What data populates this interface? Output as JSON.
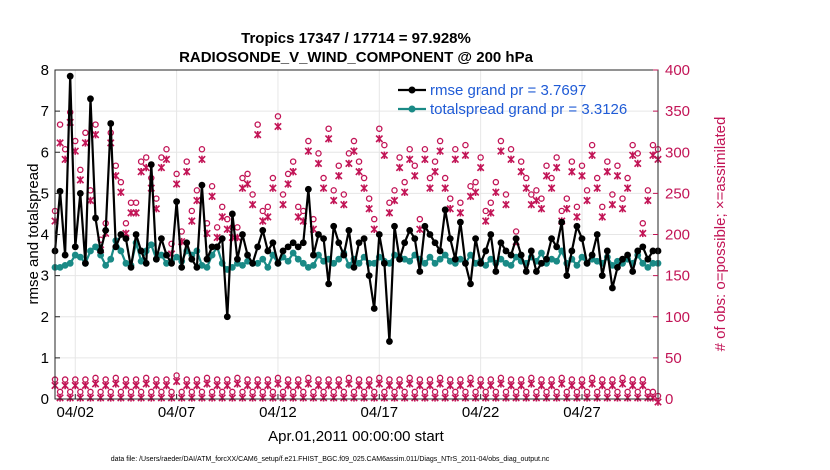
{
  "chart_data": {
    "type": "line",
    "title": "Tropics 17347 / 17714 = 97.928%",
    "subtitle": "RADIOSONDE_V_WIND_COMPONENT @ 200 hPa",
    "xlabel": "Apr.01,2011 00:00:00 start",
    "ylabel_left": "rmse and totalspread",
    "ylabel_right": "# of obs: o=possible; ×=assimilated",
    "footer": "data file: /Users/raeder/DAI/ATM_forcXX/CAM6_setup/f.e21.FHIST_BGC.f09_025.CAM6assim.011/Diags_NTrS_2011-04/obs_diag_output.nc",
    "xlim": [
      0,
      29.75
    ],
    "ylim_left": [
      0,
      8
    ],
    "ylim_right": [
      0,
      400
    ],
    "left_ticks": [
      "0",
      "1",
      "2",
      "3",
      "4",
      "5",
      "6",
      "7",
      "8"
    ],
    "right_ticks": [
      "0",
      "50",
      "100",
      "150",
      "200",
      "250",
      "300",
      "350",
      "400"
    ],
    "x_ticks": [
      {
        "x": 1,
        "label": "04/02"
      },
      {
        "x": 6,
        "label": "04/07"
      },
      {
        "x": 11,
        "label": "04/12"
      },
      {
        "x": 16,
        "label": "04/17"
      },
      {
        "x": 21,
        "label": "04/22"
      },
      {
        "x": 26,
        "label": "04/27"
      }
    ],
    "grid": true,
    "legend_position": "top-right",
    "series": [
      {
        "name": "rmse grand pr = 3.7697",
        "color": "#000000",
        "axis": "left",
        "values": [
          3.6,
          5.05,
          3.5,
          7.85,
          3.7,
          5.0,
          3.3,
          7.3,
          4.4,
          3.6,
          4.1,
          6.7,
          3.7,
          4.0,
          3.9,
          3.2,
          4.0,
          3.6,
          3.3,
          5.7,
          3.4,
          3.9,
          3.5,
          3.3,
          4.8,
          3.2,
          3.8,
          3.4,
          3.2,
          5.2,
          3.4,
          3.7,
          3.7,
          3.9,
          2.0,
          4.5,
          3.4,
          4.0,
          3.5,
          3.3,
          3.7,
          4.1,
          3.6,
          3.8,
          3.3,
          3.6,
          3.7,
          3.8,
          3.7,
          3.8,
          5.1,
          3.5,
          4.0,
          3.9,
          2.8,
          4.2,
          3.8,
          3.5,
          4.1,
          3.2,
          3.8,
          3.9,
          3.0,
          2.2,
          4.0,
          3.3,
          1.4,
          4.2,
          3.4,
          3.8,
          4.1,
          3.9,
          3.1,
          4.2,
          4.0,
          3.8,
          3.6,
          4.6,
          3.9,
          3.4,
          4.3,
          3.3,
          2.8,
          3.9,
          3.3,
          3.6,
          4.0,
          3.1,
          3.8,
          3.6,
          3.5,
          3.9,
          3.5,
          3.1,
          3.6,
          3.1,
          3.3,
          3.4,
          3.9,
          3.7,
          4.3,
          3.0,
          3.6,
          4.2,
          3.9,
          3.3,
          3.5,
          4.0,
          3.0,
          3.6,
          2.7,
          3.2,
          3.4,
          3.5,
          3.1,
          3.6,
          3.7,
          3.4,
          3.6,
          3.6
        ]
      },
      {
        "name": "totalspread grand pr = 3.3126",
        "color": "#1a8a86",
        "axis": "left",
        "values": [
          3.2,
          3.2,
          3.25,
          3.3,
          3.5,
          3.45,
          3.3,
          3.6,
          3.7,
          3.5,
          3.25,
          3.4,
          3.85,
          3.6,
          3.3,
          3.25,
          3.8,
          3.35,
          3.6,
          3.75,
          3.4,
          3.5,
          3.3,
          3.35,
          3.45,
          3.35,
          3.6,
          3.5,
          3.6,
          3.25,
          3.2,
          3.5,
          3.7,
          3.3,
          3.15,
          3.2,
          3.3,
          3.25,
          3.35,
          3.3,
          3.3,
          3.4,
          3.2,
          3.5,
          3.3,
          3.45,
          3.35,
          3.55,
          3.4,
          3.3,
          3.2,
          3.25,
          3.5,
          3.35,
          3.4,
          3.3,
          3.4,
          3.55,
          3.25,
          3.4,
          3.3,
          3.45,
          3.3,
          3.3,
          3.45,
          3.35,
          3.3,
          3.5,
          3.45,
          3.4,
          3.35,
          3.5,
          3.4,
          3.3,
          3.45,
          3.3,
          3.4,
          3.5,
          3.35,
          3.3,
          3.4,
          3.3,
          3.5,
          3.3,
          3.35,
          3.25,
          3.4,
          3.3,
          3.4,
          3.3,
          3.25,
          3.45,
          3.35,
          3.3,
          3.45,
          3.35,
          3.55,
          3.3,
          3.4,
          3.35,
          3.6,
          3.3,
          3.4,
          3.25,
          3.45,
          3.3,
          3.4,
          3.35,
          3.3,
          3.45,
          3.25,
          3.35,
          3.3,
          3.4,
          3.3,
          3.5,
          3.3,
          3.2,
          3.3,
          3.3
        ]
      },
      {
        "name": "# of obs possible (upper)",
        "color": "#c21456",
        "axis": "right",
        "marker": "o",
        "values": [
          225,
          330,
          300,
          345,
          310,
          275,
          320,
          250,
          330,
          190,
          210,
          320,
          280,
          260,
          210,
          235,
          235,
          285,
          290,
          265,
          240,
          290,
          300,
          185,
          270,
          200,
          285,
          225,
          250,
          300,
          210,
          255,
          205,
          230,
          215,
          205,
          205,
          265,
          270,
          245,
          330,
          225,
          230,
          265,
          340,
          245,
          270,
          285,
          230,
          225,
          310,
          215,
          295,
          265,
          325,
          250,
          280,
          245,
          295,
          310,
          285,
          265,
          240,
          215,
          325,
          305,
          235,
          250,
          290,
          260,
          300,
          280,
          215,
          300,
          265,
          285,
          310,
          265,
          240,
          300,
          235,
          305,
          255,
          260,
          290,
          225,
          235,
          260,
          310,
          245,
          300,
          200,
          285,
          265,
          245,
          250,
          240,
          280,
          265,
          290,
          225,
          240,
          285,
          230,
          280,
          250,
          305,
          265,
          230,
          285,
          245,
          280,
          240,
          265,
          305,
          295,
          210,
          250,
          305,
          300
        ]
      },
      {
        "name": "# of obs assimilated (upper)",
        "color": "#c21456",
        "axis": "right",
        "marker": "x",
        "values": [
          220,
          315,
          295,
          340,
          305,
          270,
          315,
          245,
          325,
          185,
          205,
          315,
          275,
          255,
          205,
          230,
          230,
          280,
          285,
          260,
          235,
          285,
          295,
          180,
          265,
          195,
          280,
          220,
          245,
          295,
          205,
          250,
          200,
          225,
          210,
          200,
          200,
          260,
          265,
          240,
          325,
          220,
          225,
          260,
          335,
          240,
          265,
          280,
          225,
          220,
          305,
          210,
          290,
          260,
          320,
          245,
          275,
          240,
          290,
          305,
          280,
          260,
          235,
          210,
          320,
          300,
          230,
          245,
          285,
          255,
          295,
          275,
          210,
          295,
          260,
          280,
          305,
          260,
          235,
          295,
          230,
          300,
          250,
          255,
          285,
          220,
          230,
          255,
          305,
          240,
          295,
          195,
          280,
          260,
          240,
          245,
          235,
          275,
          260,
          285,
          220,
          235,
          280,
          225,
          275,
          245,
          300,
          260,
          225,
          280,
          240,
          275,
          235,
          260,
          300,
          290,
          205,
          245,
          300,
          295
        ]
      },
      {
        "name": "# of obs possible (lower)",
        "color": "#c21456",
        "axis": "right",
        "marker": "o",
        "values": [
          20,
          5,
          20,
          5,
          20,
          5,
          20,
          5,
          22,
          5,
          20,
          5,
          22,
          5,
          20,
          5,
          20,
          5,
          22,
          5,
          20,
          5,
          20,
          5,
          25,
          5,
          20,
          5,
          20,
          5,
          22,
          5,
          20,
          5,
          20,
          5,
          22,
          5,
          20,
          5,
          20,
          5,
          20,
          5,
          22,
          5,
          20,
          5,
          20,
          5,
          22,
          5,
          20,
          5,
          20,
          5,
          20,
          5,
          22,
          5,
          20,
          5,
          20,
          5,
          22,
          5,
          20,
          5,
          20,
          5,
          22,
          5,
          20,
          5,
          20,
          5,
          22,
          5,
          20,
          5,
          20,
          5,
          22,
          5,
          20,
          5,
          20,
          5,
          22,
          5,
          20,
          5,
          20,
          5,
          22,
          5,
          20,
          5,
          20,
          5,
          22,
          5,
          20,
          5,
          20,
          5,
          22,
          5,
          20,
          5,
          20,
          5,
          22,
          5,
          20,
          5,
          20,
          5,
          5,
          0
        ]
      },
      {
        "name": "# of obs assimilated (lower)",
        "color": "#c21456",
        "axis": "right",
        "marker": "x",
        "values": [
          20,
          5,
          20,
          5,
          20,
          5,
          20,
          5,
          22,
          5,
          20,
          5,
          22,
          5,
          20,
          5,
          20,
          5,
          22,
          5,
          20,
          5,
          20,
          5,
          25,
          5,
          20,
          5,
          20,
          5,
          22,
          5,
          20,
          5,
          20,
          5,
          22,
          5,
          20,
          5,
          20,
          5,
          20,
          5,
          22,
          5,
          20,
          5,
          20,
          5,
          22,
          5,
          20,
          5,
          20,
          5,
          20,
          5,
          22,
          5,
          20,
          5,
          20,
          5,
          22,
          5,
          20,
          5,
          20,
          5,
          22,
          5,
          20,
          5,
          20,
          5,
          22,
          5,
          20,
          5,
          20,
          5,
          22,
          5,
          20,
          5,
          20,
          5,
          22,
          5,
          20,
          5,
          20,
          5,
          22,
          5,
          20,
          5,
          20,
          5,
          22,
          5,
          20,
          5,
          20,
          5,
          22,
          5,
          20,
          5,
          20,
          5,
          22,
          5,
          20,
          5,
          20,
          5,
          5,
          0
        ]
      }
    ]
  }
}
